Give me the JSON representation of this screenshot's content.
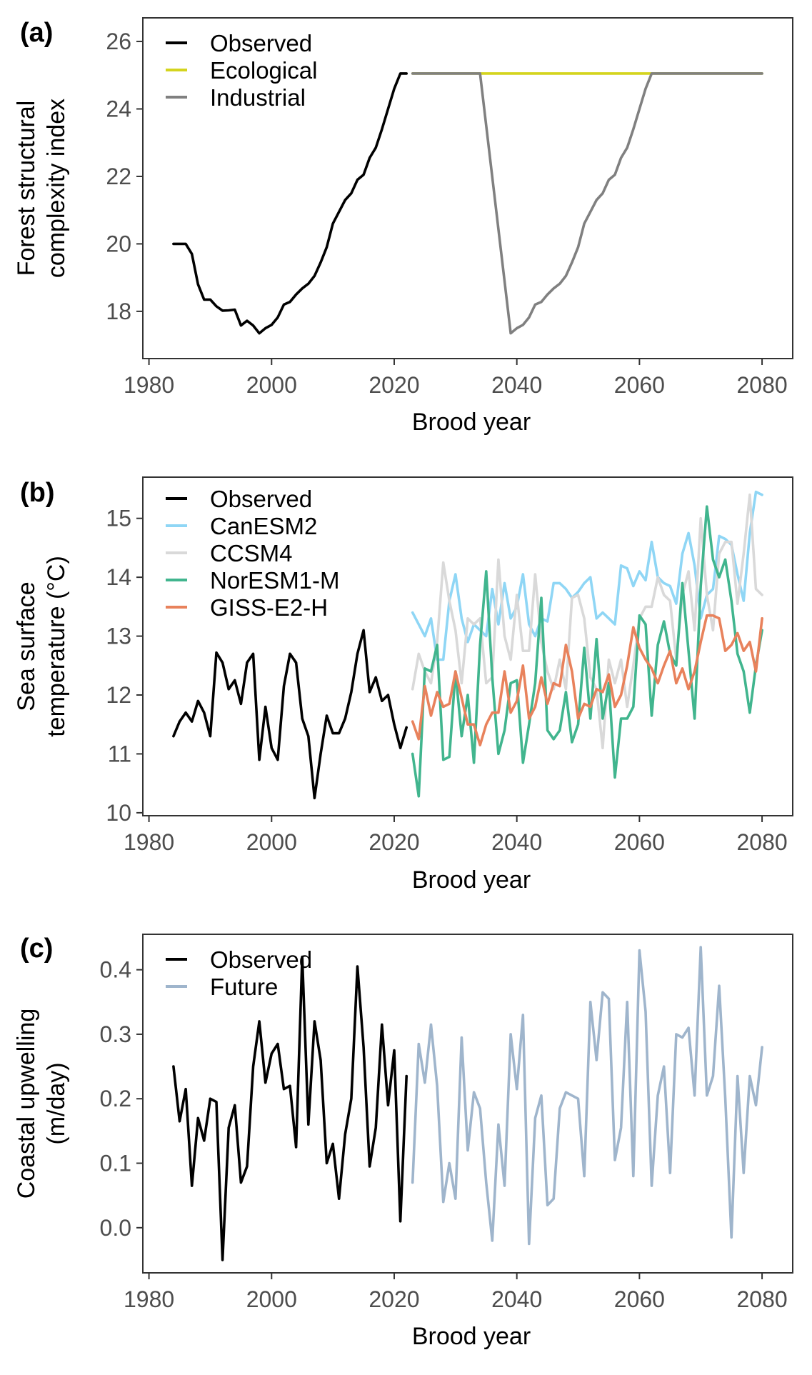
{
  "chart_data": [
    {
      "type": "line",
      "panel": "(a)",
      "xlabel": "Brood year",
      "ylabel": [
        "Forest structural",
        "complexity index"
      ],
      "xlim": [
        1979,
        2085
      ],
      "ylim": [
        16.6,
        26.7
      ],
      "xticks": [
        1980,
        2000,
        2020,
        2040,
        2060,
        2080
      ],
      "yticks": [
        18,
        20,
        22,
        24,
        26
      ],
      "legend": "top-left",
      "series": [
        {
          "name": "Observed",
          "color": "#000000",
          "x": [
            1984,
            1986,
            1987,
            1988,
            1989,
            1990,
            1991,
            1992,
            1993,
            1994,
            1995,
            1996,
            1997,
            1998,
            1999,
            2000,
            2001,
            2002,
            2003,
            2004,
            2005,
            2006,
            2007,
            2008,
            2009,
            2010,
            2011,
            2012,
            2013,
            2014,
            2015,
            2016,
            2017,
            2018,
            2019,
            2020,
            2021,
            2022
          ],
          "y": [
            20.0,
            20.0,
            19.7,
            18.8,
            18.35,
            18.35,
            18.15,
            18.02,
            18.03,
            18.05,
            17.58,
            17.72,
            17.58,
            17.35,
            17.5,
            17.6,
            17.82,
            18.2,
            18.28,
            18.5,
            18.68,
            18.82,
            19.05,
            19.45,
            19.9,
            20.6,
            20.95,
            21.3,
            21.5,
            21.9,
            22.05,
            22.55,
            22.85,
            23.4,
            24.0,
            24.6,
            25.05,
            25.05
          ]
        },
        {
          "name": "Ecological",
          "color": "#d4d41e",
          "x": [
            2023,
            2080
          ],
          "y": [
            25.05,
            25.05
          ]
        },
        {
          "name": "Industrial",
          "color": "#808080",
          "x": [
            2023,
            2034,
            2039,
            2040,
            2041,
            2042,
            2043,
            2044,
            2045,
            2046,
            2047,
            2048,
            2049,
            2050,
            2051,
            2052,
            2053,
            2054,
            2055,
            2056,
            2057,
            2058,
            2059,
            2060,
            2061,
            2062,
            2080
          ],
          "y": [
            25.05,
            25.05,
            17.35,
            17.5,
            17.6,
            17.82,
            18.2,
            18.28,
            18.5,
            18.68,
            18.82,
            19.05,
            19.45,
            19.9,
            20.6,
            20.95,
            21.3,
            21.5,
            21.9,
            22.05,
            22.55,
            22.85,
            23.4,
            24.0,
            24.6,
            25.05,
            25.05
          ]
        }
      ]
    },
    {
      "type": "line",
      "panel": "(b)",
      "xlabel": "Brood year",
      "ylabel": [
        "Sea surface",
        "temperature (°C)"
      ],
      "xlim": [
        1979,
        2085
      ],
      "ylim": [
        9.95,
        15.7
      ],
      "xticks": [
        1980,
        2000,
        2020,
        2040,
        2060,
        2080
      ],
      "yticks": [
        10,
        11,
        12,
        13,
        14,
        15
      ],
      "legend": "top-left",
      "series": [
        {
          "name": "Observed",
          "color": "#000000",
          "x": [
            1984,
            1985,
            1986,
            1987,
            1988,
            1989,
            1990,
            1991,
            1992,
            1993,
            1994,
            1995,
            1996,
            1997,
            1998,
            1999,
            2000,
            2001,
            2002,
            2003,
            2004,
            2005,
            2006,
            2007,
            2008,
            2009,
            2010,
            2011,
            2012,
            2013,
            2014,
            2015,
            2016,
            2017,
            2018,
            2019,
            2020,
            2021,
            2022
          ],
          "y": [
            11.3,
            11.55,
            11.7,
            11.55,
            11.9,
            11.7,
            11.3,
            12.72,
            12.55,
            12.1,
            12.25,
            11.85,
            12.55,
            12.7,
            10.9,
            11.8,
            11.1,
            10.9,
            12.15,
            12.7,
            12.55,
            11.6,
            11.3,
            10.25,
            11.0,
            11.65,
            11.35,
            11.35,
            11.6,
            12.05,
            12.7,
            13.1,
            12.05,
            12.3,
            11.9,
            12.0,
            11.5,
            11.1,
            11.45
          ]
        },
        {
          "name": "CanESM2",
          "color": "#8fd6f5",
          "x": [
            2023,
            2024,
            2025,
            2026,
            2027,
            2028,
            2029,
            2030,
            2031,
            2032,
            2033,
            2034,
            2035,
            2036,
            2037,
            2038,
            2039,
            2040,
            2041,
            2042,
            2043,
            2044,
            2045,
            2046,
            2047,
            2048,
            2049,
            2050,
            2051,
            2052,
            2053,
            2054,
            2055,
            2056,
            2057,
            2058,
            2059,
            2060,
            2061,
            2062,
            2063,
            2064,
            2065,
            2066,
            2067,
            2068,
            2069,
            2070,
            2071,
            2072,
            2073,
            2074,
            2075,
            2076,
            2077,
            2078,
            2079,
            2080
          ],
          "y": [
            13.4,
            13.2,
            13.0,
            13.3,
            12.6,
            12.6,
            13.6,
            14.05,
            13.3,
            12.9,
            13.2,
            13.1,
            13.0,
            13.8,
            13.2,
            13.9,
            13.3,
            13.5,
            14.05,
            13.2,
            13.0,
            13.3,
            13.25,
            13.9,
            13.9,
            13.8,
            13.65,
            13.75,
            13.9,
            14.0,
            13.3,
            13.4,
            13.3,
            13.2,
            14.2,
            14.15,
            13.85,
            14.1,
            13.95,
            14.6,
            14.0,
            13.9,
            13.85,
            13.55,
            14.4,
            14.75,
            14.2,
            13.3,
            13.7,
            13.8,
            14.7,
            14.65,
            14.55,
            14.05,
            13.6,
            14.75,
            15.45,
            15.4
          ]
        },
        {
          "name": "CCSM4",
          "color": "#d9d9d9",
          "x": [
            2023,
            2024,
            2025,
            2026,
            2027,
            2028,
            2029,
            2030,
            2031,
            2032,
            2033,
            2034,
            2035,
            2036,
            2037,
            2038,
            2039,
            2040,
            2041,
            2042,
            2043,
            2044,
            2045,
            2046,
            2047,
            2048,
            2049,
            2050,
            2051,
            2052,
            2053,
            2054,
            2055,
            2056,
            2057,
            2058,
            2059,
            2060,
            2061,
            2062,
            2063,
            2064,
            2065,
            2066,
            2067,
            2068,
            2069,
            2070,
            2071,
            2072,
            2073,
            2074,
            2075,
            2076,
            2077,
            2078,
            2079,
            2080
          ],
          "y": [
            12.1,
            12.7,
            12.4,
            12.2,
            12.9,
            14.25,
            13.6,
            13.1,
            12.2,
            13.3,
            13.2,
            13.3,
            12.2,
            12.3,
            14.3,
            13.0,
            12.6,
            13.7,
            12.75,
            12.75,
            14.05,
            12.9,
            12.4,
            12.1,
            12.6,
            12.1,
            13.65,
            13.7,
            13.3,
            12.3,
            12.1,
            11.1,
            12.6,
            12.2,
            12.6,
            11.8,
            12.5,
            13.3,
            13.5,
            13.5,
            14.0,
            13.7,
            13.6,
            12.6,
            13.7,
            14.1,
            13.1,
            15.0,
            13.7,
            13.1,
            14.4,
            14.6,
            14.6,
            13.55,
            14.4,
            15.4,
            13.8,
            13.7
          ]
        },
        {
          "name": "NorESM1-M",
          "color": "#41b58e",
          "x": [
            2023,
            2024,
            2025,
            2026,
            2027,
            2028,
            2029,
            2030,
            2031,
            2032,
            2033,
            2034,
            2035,
            2036,
            2037,
            2038,
            2039,
            2040,
            2041,
            2042,
            2043,
            2044,
            2045,
            2046,
            2047,
            2048,
            2049,
            2050,
            2051,
            2052,
            2053,
            2054,
            2055,
            2056,
            2057,
            2058,
            2059,
            2060,
            2061,
            2062,
            2063,
            2064,
            2065,
            2066,
            2067,
            2068,
            2069,
            2070,
            2071,
            2072,
            2073,
            2074,
            2075,
            2076,
            2077,
            2078,
            2079,
            2080
          ],
          "y": [
            11.0,
            10.28,
            12.45,
            12.4,
            12.85,
            10.9,
            10.95,
            12.4,
            11.3,
            12.0,
            10.85,
            12.85,
            14.1,
            12.3,
            11.0,
            11.4,
            12.2,
            12.25,
            10.85,
            11.5,
            12.2,
            13.65,
            11.4,
            11.25,
            11.4,
            12.05,
            11.2,
            11.5,
            12.8,
            11.6,
            12.95,
            11.6,
            12.2,
            10.6,
            11.6,
            11.6,
            11.8,
            13.35,
            13.2,
            11.65,
            12.85,
            13.25,
            12.7,
            12.5,
            13.9,
            12.75,
            11.6,
            13.85,
            15.2,
            14.3,
            14.0,
            14.3,
            13.6,
            12.7,
            12.4,
            11.7,
            12.5,
            13.1
          ]
        },
        {
          "name": "GISS-E2-H",
          "color": "#e8825c",
          "x": [
            2023,
            2024,
            2025,
            2026,
            2027,
            2028,
            2029,
            2030,
            2031,
            2032,
            2033,
            2034,
            2035,
            2036,
            2037,
            2038,
            2039,
            2040,
            2041,
            2042,
            2043,
            2044,
            2045,
            2046,
            2047,
            2048,
            2049,
            2050,
            2051,
            2052,
            2053,
            2054,
            2055,
            2056,
            2057,
            2058,
            2059,
            2060,
            2061,
            2062,
            2063,
            2064,
            2065,
            2066,
            2067,
            2068,
            2069,
            2070,
            2071,
            2072,
            2073,
            2074,
            2075,
            2076,
            2077,
            2078,
            2079,
            2080
          ],
          "y": [
            11.55,
            11.25,
            12.15,
            11.65,
            12.05,
            11.8,
            11.85,
            12.4,
            11.95,
            11.5,
            11.5,
            11.15,
            11.5,
            11.7,
            11.7,
            12.4,
            11.7,
            11.9,
            12.5,
            11.6,
            11.8,
            12.3,
            11.85,
            12.2,
            12.15,
            12.85,
            12.4,
            11.6,
            11.85,
            11.8,
            12.1,
            12.05,
            12.35,
            11.8,
            12.0,
            12.5,
            13.15,
            12.8,
            12.6,
            12.45,
            12.2,
            12.5,
            12.75,
            12.2,
            12.45,
            12.1,
            12.4,
            12.9,
            13.35,
            13.35,
            13.3,
            12.75,
            12.85,
            13.05,
            12.75,
            12.9,
            12.4,
            13.3
          ]
        }
      ]
    },
    {
      "type": "line",
      "panel": "(c)",
      "xlabel": "Brood year",
      "ylabel": [
        "Coastal upwelling",
        "(m/day)"
      ],
      "xlim": [
        1979,
        2085
      ],
      "ylim": [
        -0.07,
        0.455
      ],
      "xticks": [
        1980,
        2000,
        2020,
        2040,
        2060,
        2080
      ],
      "yticks": [
        0.0,
        0.1,
        0.2,
        0.3,
        0.4
      ],
      "ytick_labels": [
        "0.0",
        "0.1",
        "0.2",
        "0.3",
        "0.4"
      ],
      "legend": "top-left",
      "series": [
        {
          "name": "Observed",
          "color": "#000000",
          "x": [
            1984,
            1985,
            1986,
            1987,
            1988,
            1989,
            1990,
            1991,
            1992,
            1993,
            1994,
            1995,
            1996,
            1997,
            1998,
            1999,
            2000,
            2001,
            2002,
            2003,
            2004,
            2005,
            2006,
            2007,
            2008,
            2009,
            2010,
            2011,
            2012,
            2013,
            2014,
            2015,
            2016,
            2017,
            2018,
            2019,
            2020,
            2021,
            2022
          ],
          "y": [
            0.25,
            0.165,
            0.215,
            0.065,
            0.17,
            0.135,
            0.2,
            0.195,
            -0.05,
            0.155,
            0.19,
            0.07,
            0.095,
            0.25,
            0.32,
            0.225,
            0.27,
            0.285,
            0.215,
            0.22,
            0.125,
            0.42,
            0.16,
            0.32,
            0.26,
            0.1,
            0.13,
            0.045,
            0.145,
            0.2,
            0.405,
            0.28,
            0.095,
            0.155,
            0.315,
            0.19,
            0.275,
            0.01,
            0.235
          ]
        },
        {
          "name": "Future",
          "color": "#9fb5cc",
          "x": [
            2023,
            2024,
            2025,
            2026,
            2027,
            2028,
            2029,
            2030,
            2031,
            2032,
            2033,
            2034,
            2035,
            2036,
            2037,
            2038,
            2039,
            2040,
            2041,
            2042,
            2043,
            2044,
            2045,
            2046,
            2047,
            2048,
            2049,
            2050,
            2051,
            2052,
            2053,
            2054,
            2055,
            2056,
            2057,
            2058,
            2059,
            2060,
            2061,
            2062,
            2063,
            2064,
            2065,
            2066,
            2067,
            2068,
            2069,
            2070,
            2071,
            2072,
            2073,
            2074,
            2075,
            2076,
            2077,
            2078,
            2079,
            2080
          ],
          "y": [
            0.07,
            0.285,
            0.225,
            0.315,
            0.22,
            0.04,
            0.1,
            0.045,
            0.295,
            0.12,
            0.21,
            0.185,
            0.07,
            -0.02,
            0.16,
            0.065,
            0.3,
            0.215,
            0.33,
            -0.025,
            0.17,
            0.205,
            0.035,
            0.045,
            0.185,
            0.21,
            0.205,
            0.2,
            0.08,
            0.35,
            0.26,
            0.365,
            0.355,
            0.105,
            0.155,
            0.35,
            0.08,
            0.43,
            0.335,
            0.065,
            0.205,
            0.25,
            0.085,
            0.3,
            0.295,
            0.31,
            0.205,
            0.435,
            0.205,
            0.235,
            0.375,
            0.2,
            -0.015,
            0.235,
            0.085,
            0.235,
            0.19,
            0.28
          ]
        }
      ]
    }
  ]
}
